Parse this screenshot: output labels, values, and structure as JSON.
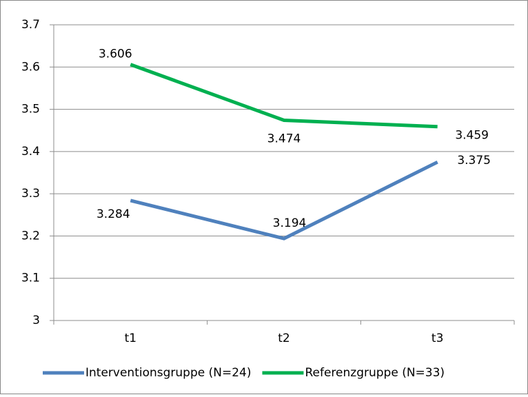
{
  "chart_data": {
    "type": "line",
    "categories": [
      "t1",
      "t2",
      "t3"
    ],
    "series": [
      {
        "name": "Interventionsgruppe (N=24)",
        "color": "#4f81bd",
        "values": [
          3.284,
          3.194,
          3.375
        ]
      },
      {
        "name": "Referenzgruppe (N=33)",
        "color": "#00b050",
        "values": [
          3.606,
          3.474,
          3.459
        ]
      }
    ],
    "ylim": [
      3,
      3.7
    ],
    "yticks": [
      3,
      3.1,
      3.2,
      3.3,
      3.4,
      3.5,
      3.6,
      3.7
    ],
    "grid": true,
    "legend": "bottom"
  }
}
